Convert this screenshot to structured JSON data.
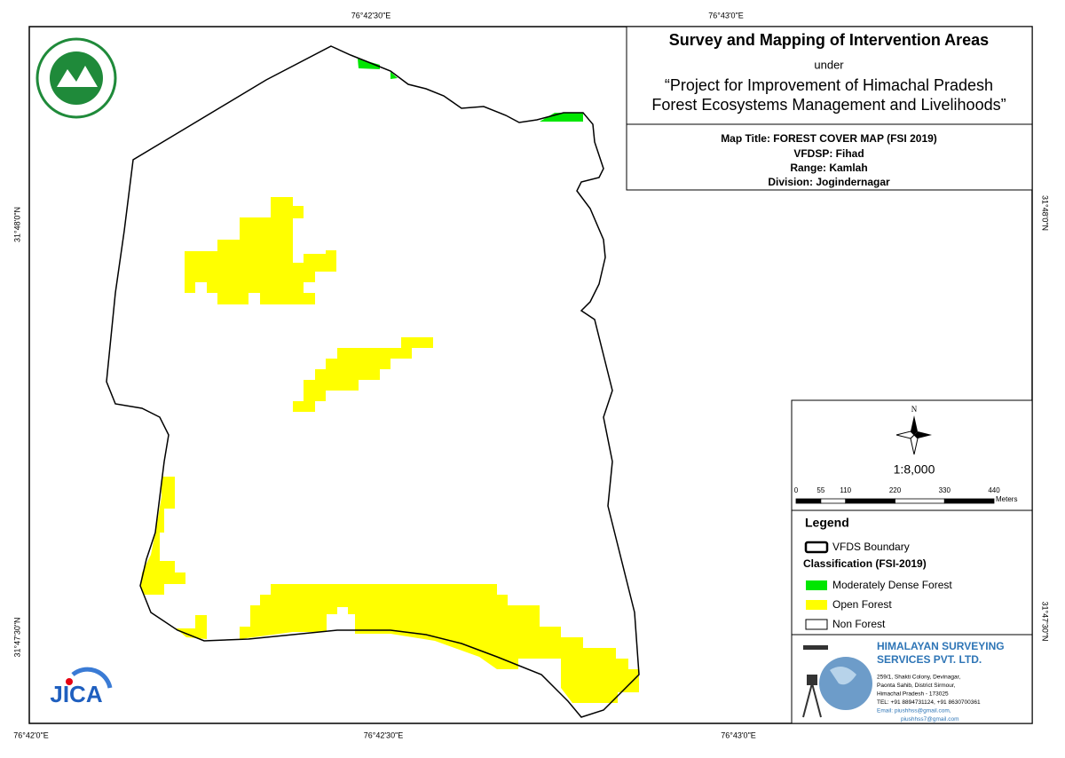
{
  "title_block": {
    "title": "Survey and Mapping of Intervention Areas",
    "under": "under",
    "project_line1": "“Project for Improvement of Himachal Pradesh",
    "project_line2": "Forest Ecosystems Management and Livelihoods”",
    "map_title": "Map Title: FOREST COVER MAP (FSI 2019)",
    "vfdsp": "VFDSP: Fihad",
    "range": "Range: Kamlah",
    "division": "Division: Jogindernagar"
  },
  "graticule": {
    "top": [
      "76°42'30\"E",
      "76°43'0\"E"
    ],
    "bottom": [
      "76°42'0\"E",
      "76°42'30\"E",
      "76°43'0\"E"
    ],
    "left": [
      "31°48'0\"N",
      "31°47'30\"N"
    ],
    "right": [
      "31°48'0\"N",
      "31°47'30\"N"
    ]
  },
  "scale": {
    "north": "N",
    "ratio": "1:8,000",
    "labels": [
      0,
      55,
      110,
      220,
      330,
      440
    ],
    "unit": "Meters"
  },
  "legend": {
    "title": "Legend",
    "boundary": "VFDS Boundary",
    "classification": "Classification (FSI-2019)",
    "items": [
      {
        "label": "Moderately Dense Forest",
        "color": "#00e600"
      },
      {
        "label": "Open Forest",
        "color": "#ffff00"
      },
      {
        "label": "Non Forest",
        "color": "#ffffff"
      }
    ]
  },
  "company": {
    "name_line1": "HIMALAYAN SURVEYING",
    "name_line2": "SERVICES PVT. LTD.",
    "address": [
      "259/1, Shakti Colony, Devinagar,",
      "Paonta Sahib, District Sirmour,",
      "Himachal Pradesh - 173025",
      "TEL: +91 8894731124, +91 8630700361",
      "Email: piushhss@gmail.com,",
      "piushhss7@gmail.com"
    ]
  },
  "logos": {
    "jica": "JICA"
  }
}
